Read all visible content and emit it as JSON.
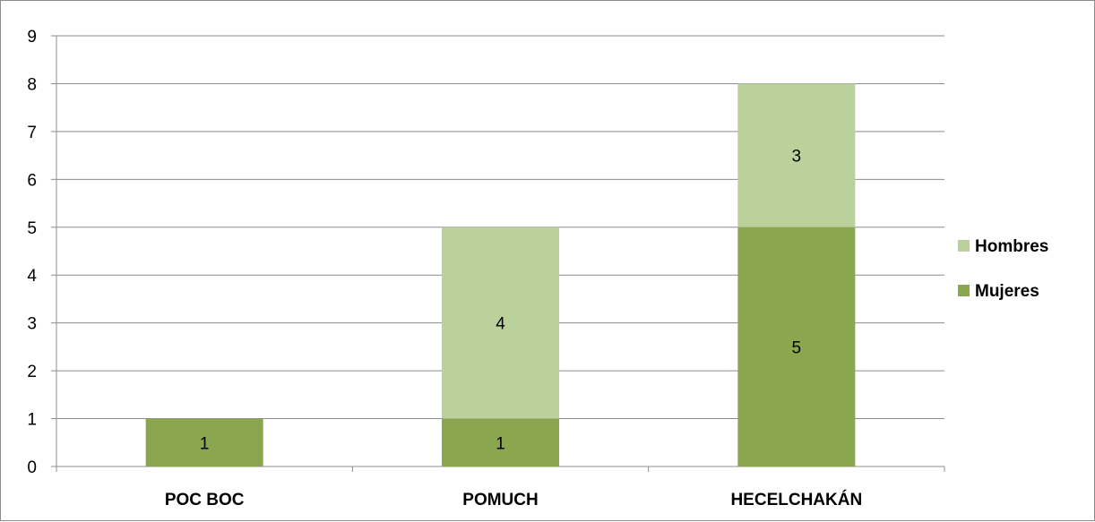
{
  "chart_data": {
    "type": "bar",
    "stacked": true,
    "categories": [
      "POC BOC",
      "POMUCH",
      "HECELCHAKÁN"
    ],
    "series": [
      {
        "name": "Mujeres",
        "values": [
          1,
          1,
          5
        ],
        "color": "#8aa64e"
      },
      {
        "name": "Hombres",
        "values": [
          0,
          4,
          3
        ],
        "color": "#bad19b"
      }
    ],
    "y_ticks": [
      "0",
      "1",
      "2",
      "3",
      "4",
      "5",
      "6",
      "7",
      "8",
      "9"
    ],
    "ylim": [
      0,
      9
    ],
    "grid": true,
    "legend_position": "right",
    "legend_order": [
      "Hombres",
      "Mujeres"
    ],
    "title": "",
    "xlabel": "",
    "ylabel": ""
  }
}
